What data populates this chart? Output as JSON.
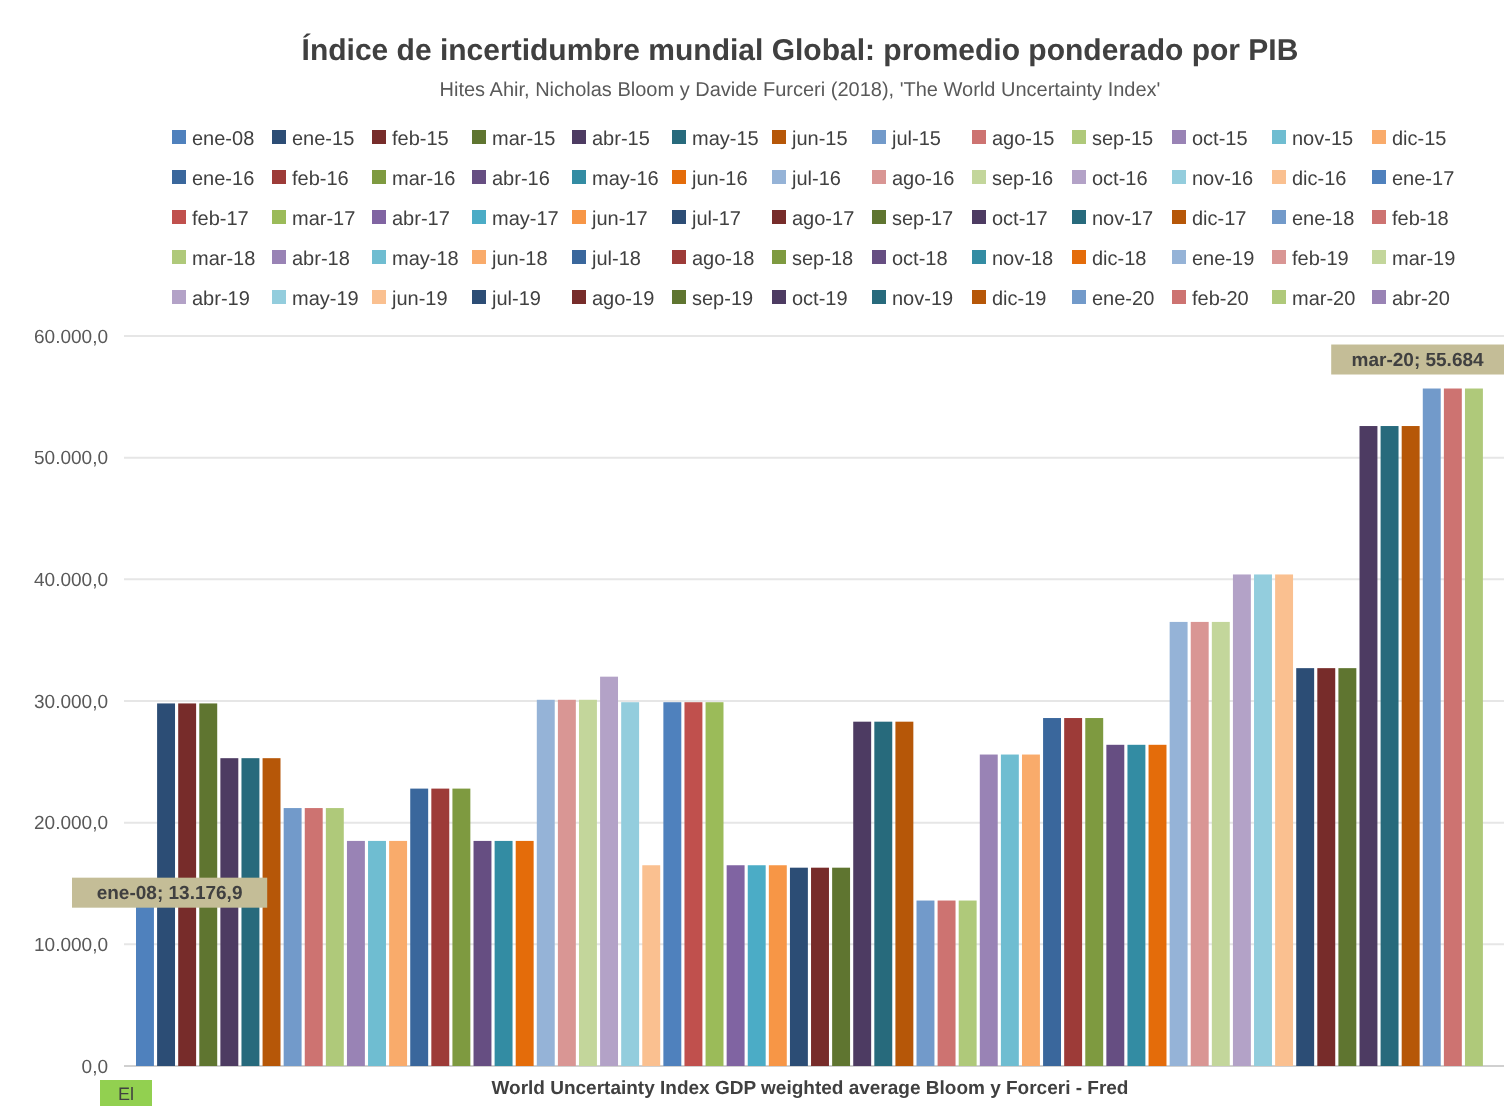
{
  "chart_data": {
    "type": "bar",
    "title": "Índice de incertidumbre mundial Global: promedio ponderado por PIB",
    "subtitle": "Hites Ahir, Nicholas Bloom y Davide Furceri (2018), 'The World Uncertainty Index'",
    "categories": [
      null
    ],
    "ylim": [
      0,
      60000
    ],
    "yticks": [
      {
        "value": 0,
        "label": "0,0"
      },
      {
        "value": 10000,
        "label": "10.000,0"
      },
      {
        "value": 20000,
        "label": "20.000,0"
      },
      {
        "value": 30000,
        "label": "30.000,0"
      },
      {
        "value": 40000,
        "label": "40.000,0"
      },
      {
        "value": 50000,
        "label": "50.000,0"
      },
      {
        "value": 60000,
        "label": "60.000,0"
      }
    ],
    "grid": "y",
    "legend": "top",
    "annotations": [
      {
        "text": "ene-08; 13.176,9",
        "y": 13176.9
      },
      {
        "text": "mar-20; 55.684",
        "y": 55684
      },
      "World Uncertainty Index GDP weighted average Bloom y Forceri - Fred",
      "El"
    ],
    "series": [
      {
        "name": "ene-08",
        "color": "#4f81bd",
        "values": [
          13176.9
        ]
      },
      {
        "name": "ene-15",
        "color": "#2c4d75",
        "values": [
          29800
        ]
      },
      {
        "name": "feb-15",
        "color": "#772c2a",
        "values": [
          29800
        ]
      },
      {
        "name": "mar-15",
        "color": "#5f7530",
        "values": [
          29800
        ]
      },
      {
        "name": "abr-15",
        "color": "#4d3b62",
        "values": [
          25300
        ]
      },
      {
        "name": "may-15",
        "color": "#276a7c",
        "values": [
          25300
        ]
      },
      {
        "name": "jun-15",
        "color": "#b65708",
        "values": [
          25300
        ]
      },
      {
        "name": "jul-15",
        "color": "#729aca",
        "values": [
          21200
        ]
      },
      {
        "name": "ago-15",
        "color": "#cd7371",
        "values": [
          21200
        ]
      },
      {
        "name": "sep-15",
        "color": "#afc97a",
        "values": [
          21200
        ]
      },
      {
        "name": "oct-15",
        "color": "#9983b5",
        "values": [
          18500
        ]
      },
      {
        "name": "nov-15",
        "color": "#6fbdd1",
        "values": [
          18500
        ]
      },
      {
        "name": "dic-15",
        "color": "#f9ab6b",
        "values": [
          18500
        ]
      },
      {
        "name": "ene-16",
        "color": "#3a679c",
        "values": [
          22800
        ]
      },
      {
        "name": "feb-16",
        "color": "#9d3b38",
        "values": [
          22800
        ]
      },
      {
        "name": "mar-16",
        "color": "#7e9a40",
        "values": [
          22800
        ]
      },
      {
        "name": "abr-16",
        "color": "#664e82",
        "values": [
          18500
        ]
      },
      {
        "name": "may-16",
        "color": "#338ca3",
        "values": [
          18500
        ]
      },
      {
        "name": "jun-16",
        "color": "#e46c0a",
        "values": [
          18500
        ]
      },
      {
        "name": "jul-16",
        "color": "#95b3d7",
        "values": [
          30100
        ]
      },
      {
        "name": "ago-16",
        "color": "#d99694",
        "values": [
          30100
        ]
      },
      {
        "name": "sep-16",
        "color": "#c3d69b",
        "values": [
          30100
        ]
      },
      {
        "name": "oct-16",
        "color": "#b3a2c7",
        "values": [
          32000
        ]
      },
      {
        "name": "nov-16",
        "color": "#93cddd",
        "values": [
          29900
        ]
      },
      {
        "name": "dic-16",
        "color": "#fac090",
        "values": [
          16500
        ]
      },
      {
        "name": "ene-17",
        "color": "#4f81bd",
        "values": [
          29900
        ]
      },
      {
        "name": "feb-17",
        "color": "#c0504d",
        "values": [
          29900
        ]
      },
      {
        "name": "mar-17",
        "color": "#9bbb59",
        "values": [
          29900
        ]
      },
      {
        "name": "abr-17",
        "color": "#8064a2",
        "values": [
          16500
        ]
      },
      {
        "name": "may-17",
        "color": "#4bacc6",
        "values": [
          16500
        ]
      },
      {
        "name": "jun-17",
        "color": "#f79646",
        "values": [
          16500
        ]
      },
      {
        "name": "jul-17",
        "color": "#2c4d75",
        "values": [
          16300
        ]
      },
      {
        "name": "ago-17",
        "color": "#772c2a",
        "values": [
          16300
        ]
      },
      {
        "name": "sep-17",
        "color": "#5f7530",
        "values": [
          16300
        ]
      },
      {
        "name": "oct-17",
        "color": "#4d3b62",
        "values": [
          28300
        ]
      },
      {
        "name": "nov-17",
        "color": "#276a7c",
        "values": [
          28300
        ]
      },
      {
        "name": "dic-17",
        "color": "#b65708",
        "values": [
          28300
        ]
      },
      {
        "name": "ene-18",
        "color": "#729aca",
        "values": [
          13600
        ]
      },
      {
        "name": "feb-18",
        "color": "#cd7371",
        "values": [
          13600
        ]
      },
      {
        "name": "mar-18",
        "color": "#afc97a",
        "values": [
          13600
        ]
      },
      {
        "name": "abr-18",
        "color": "#9983b5",
        "values": [
          25600
        ]
      },
      {
        "name": "may-18",
        "color": "#6fbdd1",
        "values": [
          25600
        ]
      },
      {
        "name": "jun-18",
        "color": "#f9ab6b",
        "values": [
          25600
        ]
      },
      {
        "name": "jul-18",
        "color": "#3a679c",
        "values": [
          28600
        ]
      },
      {
        "name": "ago-18",
        "color": "#9d3b38",
        "values": [
          28600
        ]
      },
      {
        "name": "sep-18",
        "color": "#7e9a40",
        "values": [
          28600
        ]
      },
      {
        "name": "oct-18",
        "color": "#664e82",
        "values": [
          26400
        ]
      },
      {
        "name": "nov-18",
        "color": "#338ca3",
        "values": [
          26400
        ]
      },
      {
        "name": "dic-18",
        "color": "#e46c0a",
        "values": [
          26400
        ]
      },
      {
        "name": "ene-19",
        "color": "#95b3d7",
        "values": [
          36500
        ]
      },
      {
        "name": "feb-19",
        "color": "#d99694",
        "values": [
          36500
        ]
      },
      {
        "name": "mar-19",
        "color": "#c3d69b",
        "values": [
          36500
        ]
      },
      {
        "name": "abr-19",
        "color": "#b3a2c7",
        "values": [
          40400
        ]
      },
      {
        "name": "may-19",
        "color": "#93cddd",
        "values": [
          40400
        ]
      },
      {
        "name": "jun-19",
        "color": "#fac090",
        "values": [
          40400
        ]
      },
      {
        "name": "jul-19",
        "color": "#2c4d75",
        "values": [
          32700
        ]
      },
      {
        "name": "ago-19",
        "color": "#772c2a",
        "values": [
          32700
        ]
      },
      {
        "name": "sep-19",
        "color": "#5f7530",
        "values": [
          32700
        ]
      },
      {
        "name": "oct-19",
        "color": "#4d3b62",
        "values": [
          52600
        ]
      },
      {
        "name": "nov-19",
        "color": "#276a7c",
        "values": [
          52600
        ]
      },
      {
        "name": "dic-19",
        "color": "#b65708",
        "values": [
          52600
        ]
      },
      {
        "name": "ene-20",
        "color": "#729aca",
        "values": [
          55684
        ]
      },
      {
        "name": "feb-20",
        "color": "#cd7371",
        "values": [
          55684
        ]
      },
      {
        "name": "mar-20",
        "color": "#afc97a",
        "values": [
          55684
        ]
      },
      {
        "name": "abr-20",
        "color": "#9983b5",
        "values": [
          null
        ]
      }
    ]
  }
}
